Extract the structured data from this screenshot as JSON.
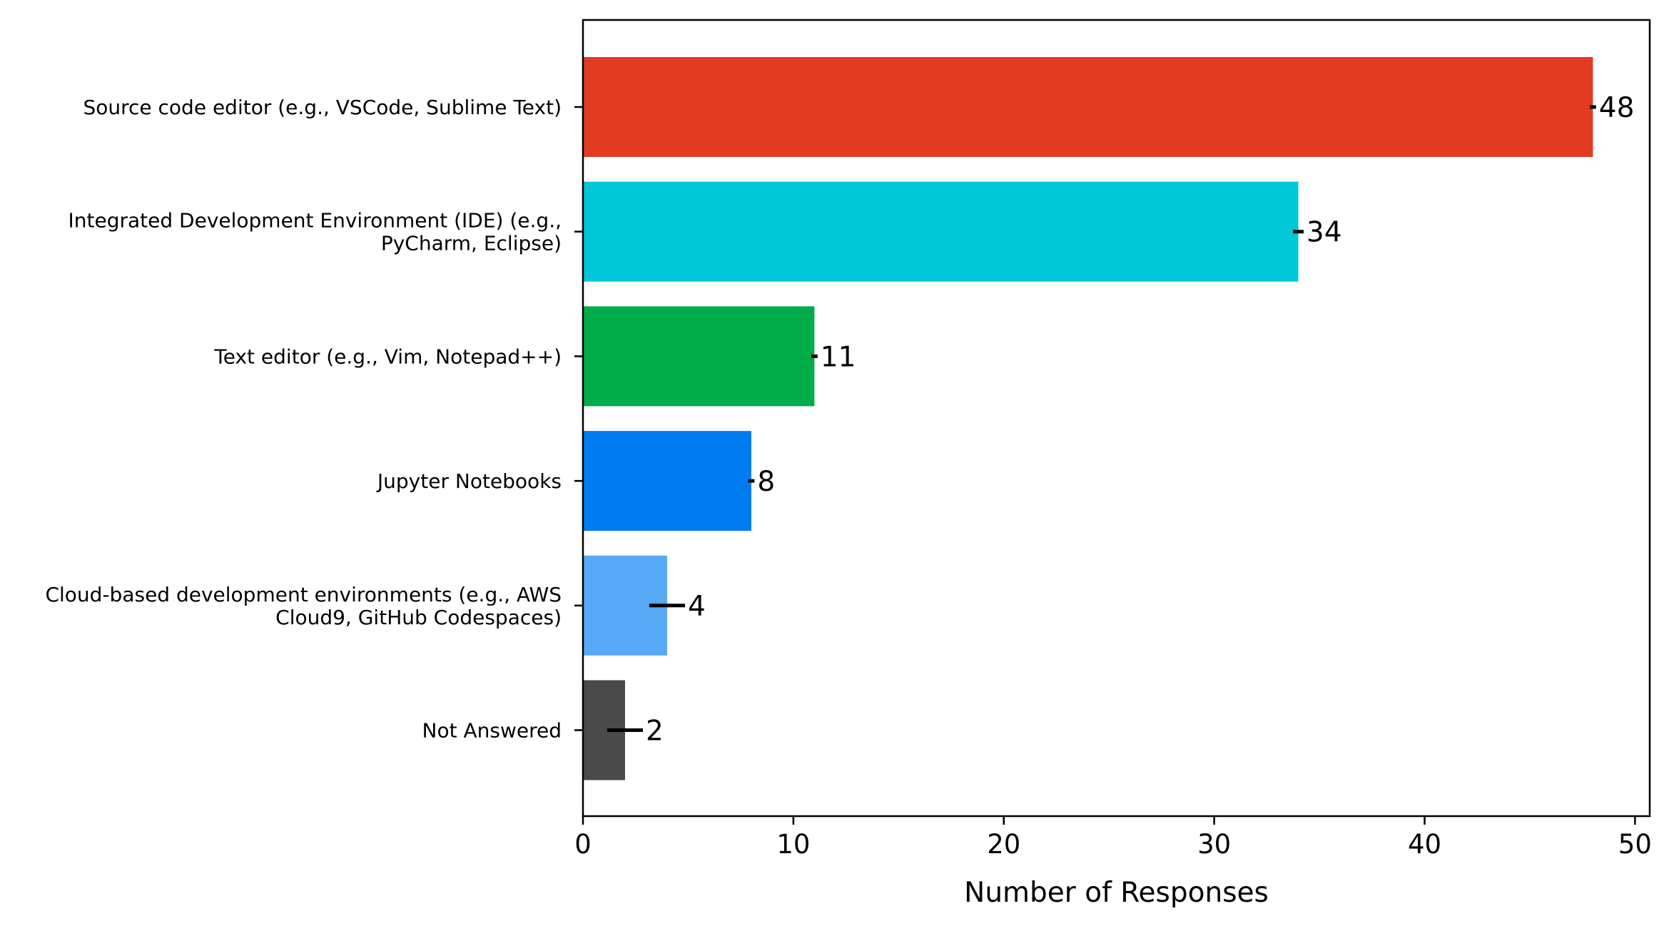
{
  "chart_data": {
    "type": "bar",
    "orientation": "horizontal",
    "categories": [
      [
        "Source code editor (e.g., VSCode, Sublime Text)"
      ],
      [
        "Integrated Development Environment (IDE) (e.g.,",
        "PyCharm, Eclipse)"
      ],
      [
        "Text editor (e.g., Vim, Notepad++)"
      ],
      [
        "Jupyter Notebooks"
      ],
      [
        "Cloud-based development environments (e.g., AWS",
        "Cloud9, GitHub Codespaces)"
      ],
      [
        "Not Answered"
      ]
    ],
    "values": [
      48,
      34,
      11,
      8,
      4,
      2
    ],
    "value_labels": [
      "48",
      "34",
      "11",
      "8",
      "4",
      "2"
    ],
    "error_bar_halfwidth": [
      0.15,
      0.25,
      0.15,
      0.15,
      0.85,
      0.85
    ],
    "colors": [
      "#e33a22",
      "#00c8d7",
      "#00ac49",
      "#007cf0",
      "#57a8f5",
      "#4a4a4a"
    ],
    "title": "",
    "xlabel": "Number of Responses",
    "ylabel": "",
    "xlim": [
      0,
      50.7
    ],
    "xticks": [
      0,
      10,
      20,
      30,
      40,
      50
    ],
    "xtick_labels": [
      "0",
      "10",
      "20",
      "30",
      "40",
      "50"
    ],
    "grid": false,
    "legend": "none"
  }
}
